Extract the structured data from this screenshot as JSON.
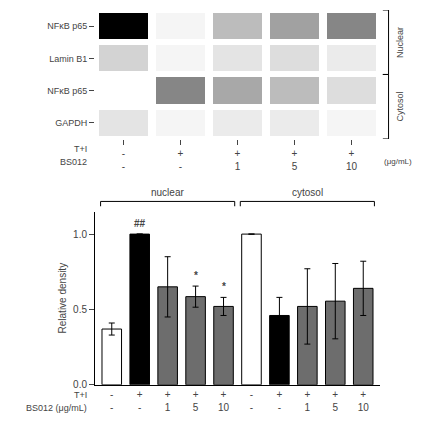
{
  "chart_data": [
    {
      "type": "heatmap",
      "categories": [
        "-\n-",
        "+\n-",
        "+\n1",
        "+\n5",
        "+\n10"
      ],
      "rows": [
        "NFκB p65",
        "Lamin B1",
        "NFκB p65",
        "GAPDH"
      ],
      "cells": [
        [
          0.12,
          0.85,
          0.68,
          0.6,
          0.52
        ],
        [
          0.75,
          0.85,
          0.8,
          0.78,
          0.82
        ],
        [
          0.88,
          0.52,
          0.62,
          0.68,
          0.78
        ],
        [
          0.8,
          0.85,
          0.82,
          0.82,
          0.85
        ]
      ],
      "groups": [
        {
          "label": "Nuclear",
          "rows": [
            0,
            1
          ]
        },
        {
          "label": "Cytosol",
          "rows": [
            2,
            3
          ]
        }
      ],
      "row_labels": [
        "T+I",
        "BS012"
      ],
      "units": "(μg/mL)"
    },
    {
      "type": "bar",
      "categories": [
        "-\n-",
        "+\n-",
        "+\n1",
        "+\n5",
        "+\n10",
        "-\n-",
        "+\n-",
        "+\n1",
        "+\n5",
        "+\n10"
      ],
      "values": [
        0.37,
        1.0,
        0.65,
        0.585,
        0.52,
        1.0,
        0.46,
        0.52,
        0.555,
        0.64
      ],
      "errors": [
        0.04,
        0.0,
        0.2,
        0.07,
        0.06,
        0.0,
        0.12,
        0.25,
        0.25,
        0.18
      ],
      "colors": [
        "white",
        "black",
        "#6d6d6d",
        "#6d6d6d",
        "#6d6d6d",
        "white",
        "black",
        "#6d6d6d",
        "#6d6d6d",
        "#6d6d6d"
      ],
      "ylabel": "Relative density",
      "ylim": [
        0.0,
        1.15
      ],
      "yticks": [
        {
          "value": 0.0,
          "label": "0.0"
        },
        0.5,
        {
          "value": 1.0,
          "label": "1.0"
        }
      ],
      "grid": false,
      "groups": [
        {
          "label": "nuclear",
          "categories": [
            0,
            4
          ]
        },
        {
          "label": "cytosol",
          "categories": [
            5,
            9
          ]
        }
      ],
      "annotations": [
        {
          "x": 1,
          "text": "##"
        },
        {
          "x": 3,
          "text": "*"
        },
        {
          "x": 4,
          "text": "*"
        }
      ],
      "row_labels": [
        "T+I",
        "BS012 (μg/mL)"
      ]
    }
  ]
}
